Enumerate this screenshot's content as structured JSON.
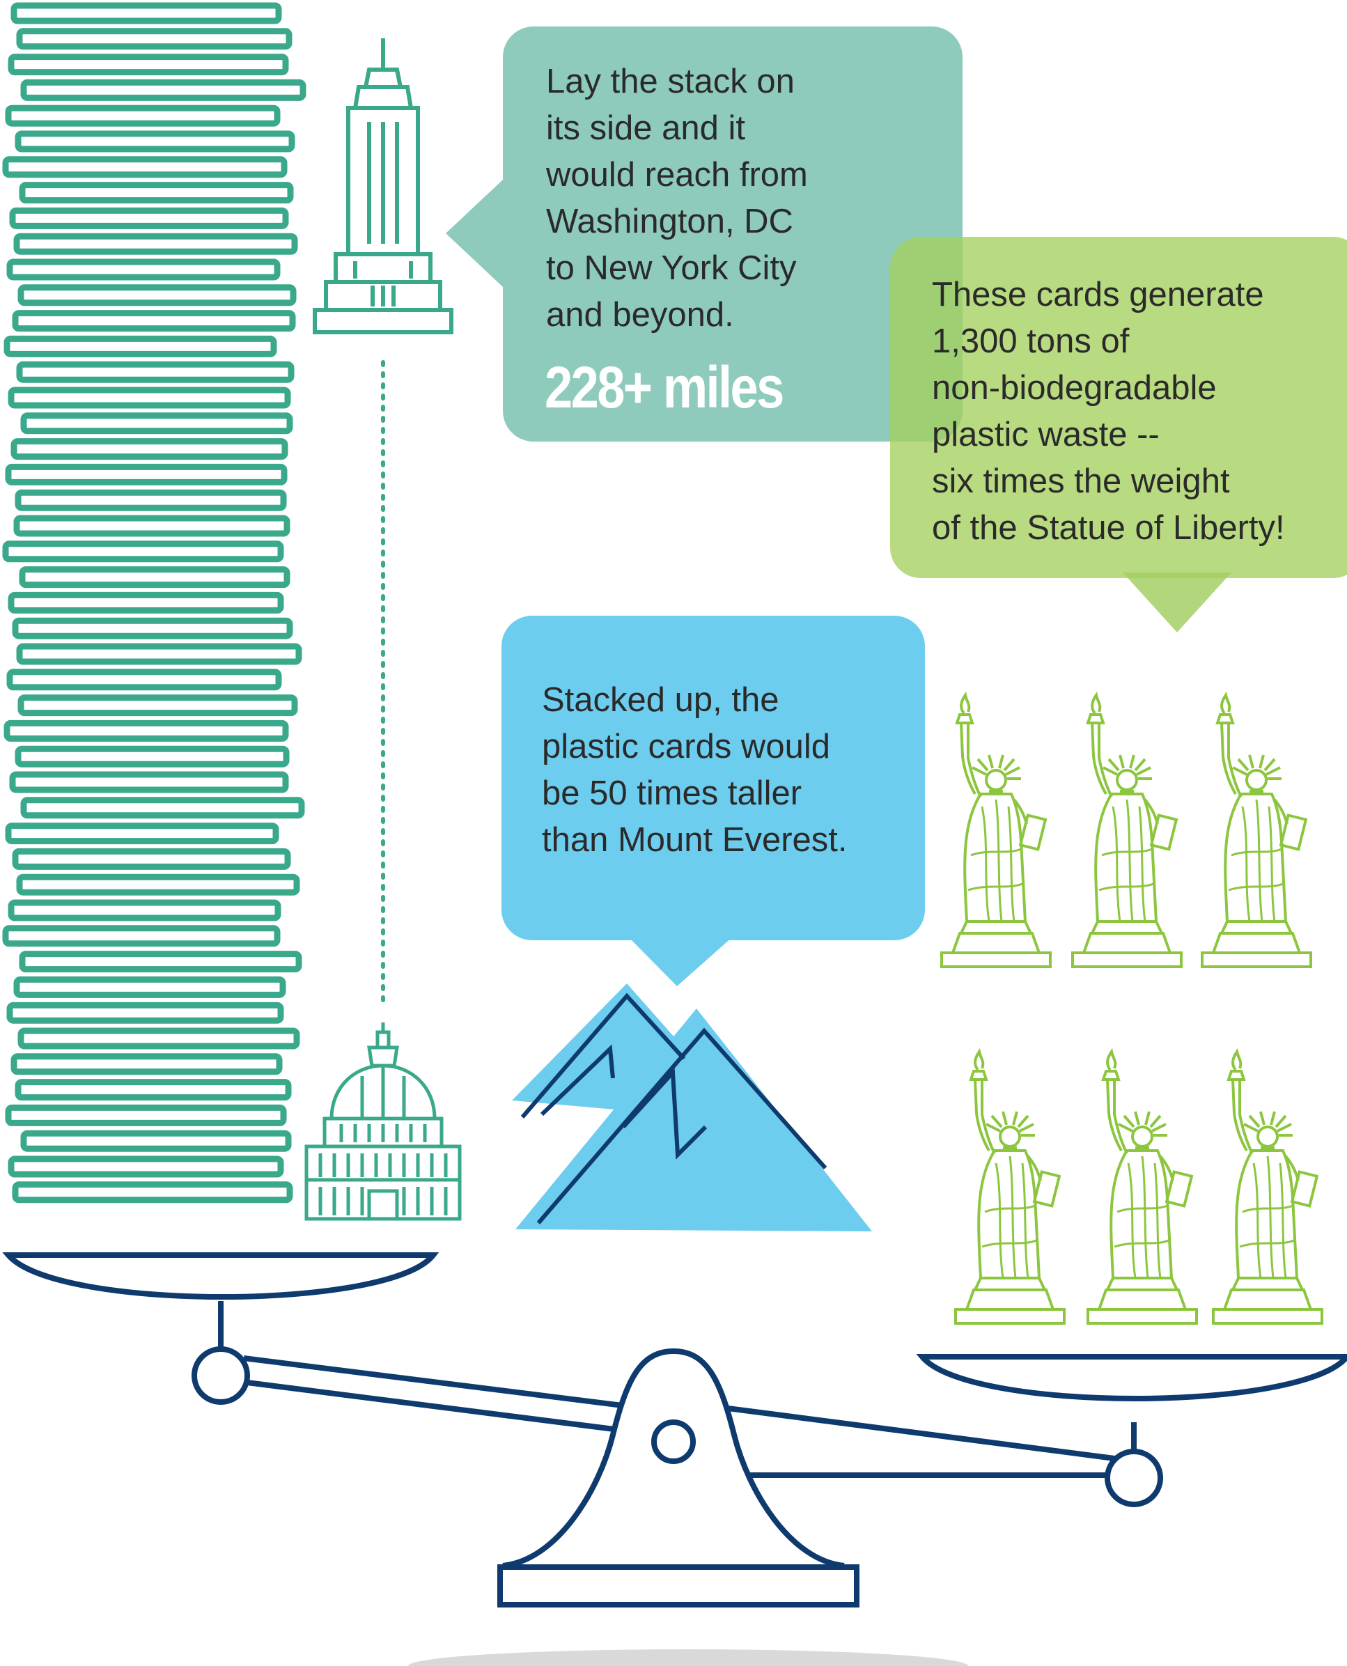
{
  "colors": {
    "teal": "#3aa88b",
    "teal_bubble": "#8ecbbd",
    "green": "#8cc63f",
    "green_bubble": "#b2d67b",
    "blue_bubble": "#6dcdef",
    "mountain_fill": "#6dcdef",
    "navy": "#0e3a6e",
    "shadow": "#d9d9d9"
  },
  "bubbles": {
    "distance": {
      "text": "Lay the stack on\nits side and it\nwould reach from\nWashington, DC\nto New York City\nand beyond.",
      "stat": "228+ miles"
    },
    "waste": {
      "text": "These cards generate\n1,300 tons of\nnon-biodegradable\nplastic waste --\nsix times the weight\nof the Statue of Liberty!"
    },
    "height": {
      "text": "Stacked up, the\nplastic cards would\nbe 50 times taller\nthan Mount Everest."
    }
  },
  "icons": {
    "stack": "card-stack-icon",
    "skyscraper": "empire-state-building-icon",
    "capitol": "capitol-building-icon",
    "mountains": "mountains-icon",
    "statue": "statue-of-liberty-icon",
    "scale": "balance-scale-icon"
  }
}
